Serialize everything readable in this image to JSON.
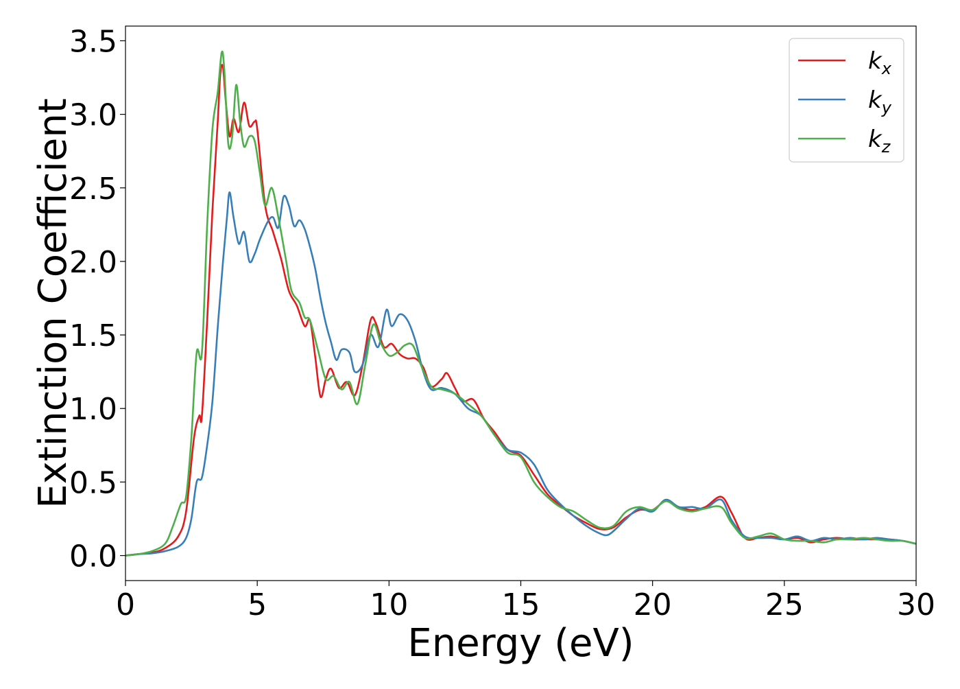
{
  "chart_data": {
    "type": "line",
    "title": "",
    "xlabel": "Energy (eV)",
    "ylabel": "Extinction Coefficient",
    "xlim": [
      0,
      30
    ],
    "ylim": [
      -0.17,
      3.6
    ],
    "xticks": [
      0,
      5,
      10,
      15,
      20,
      25,
      30
    ],
    "yticks": [
      0.0,
      0.5,
      1.0,
      1.5,
      2.0,
      2.5,
      3.0,
      3.5
    ],
    "xtick_labels": [
      "0",
      "5",
      "10",
      "15",
      "20",
      "25",
      "30"
    ],
    "ytick_labels": [
      "0.0",
      "0.5",
      "1.0",
      "1.5",
      "2.0",
      "2.5",
      "3.0",
      "3.5"
    ],
    "grid": false,
    "legend_position": "top-right",
    "series": [
      {
        "name": "k_x",
        "label_base": "k",
        "label_sub": "x",
        "color": "#e41a1c",
        "points": [
          [
            0.0,
            0.0
          ],
          [
            0.5,
            0.01
          ],
          [
            1.0,
            0.02
          ],
          [
            1.5,
            0.05
          ],
          [
            2.0,
            0.13
          ],
          [
            2.3,
            0.3
          ],
          [
            2.6,
            0.8
          ],
          [
            2.8,
            0.95
          ],
          [
            2.9,
            0.95
          ],
          [
            3.1,
            1.6
          ],
          [
            3.3,
            2.35
          ],
          [
            3.5,
            2.95
          ],
          [
            3.6,
            3.28
          ],
          [
            3.7,
            3.32
          ],
          [
            3.8,
            3.1
          ],
          [
            3.95,
            2.85
          ],
          [
            4.1,
            2.97
          ],
          [
            4.3,
            2.88
          ],
          [
            4.5,
            3.08
          ],
          [
            4.7,
            2.92
          ],
          [
            4.9,
            2.95
          ],
          [
            5.0,
            2.9
          ],
          [
            5.3,
            2.38
          ],
          [
            5.6,
            2.2
          ],
          [
            5.9,
            2.02
          ],
          [
            6.2,
            1.8
          ],
          [
            6.5,
            1.7
          ],
          [
            6.8,
            1.56
          ],
          [
            7.0,
            1.6
          ],
          [
            7.2,
            1.35
          ],
          [
            7.4,
            1.08
          ],
          [
            7.6,
            1.2
          ],
          [
            7.8,
            1.27
          ],
          [
            8.1,
            1.14
          ],
          [
            8.4,
            1.18
          ],
          [
            8.7,
            1.09
          ],
          [
            9.0,
            1.3
          ],
          [
            9.3,
            1.6
          ],
          [
            9.5,
            1.58
          ],
          [
            9.8,
            1.42
          ],
          [
            10.1,
            1.44
          ],
          [
            10.4,
            1.37
          ],
          [
            10.7,
            1.34
          ],
          [
            11.0,
            1.34
          ],
          [
            11.3,
            1.28
          ],
          [
            11.6,
            1.15
          ],
          [
            12.0,
            1.2
          ],
          [
            12.2,
            1.24
          ],
          [
            12.5,
            1.14
          ],
          [
            12.8,
            1.05
          ],
          [
            13.2,
            1.06
          ],
          [
            13.6,
            0.93
          ],
          [
            14.0,
            0.84
          ],
          [
            14.5,
            0.72
          ],
          [
            15.0,
            0.68
          ],
          [
            15.5,
            0.55
          ],
          [
            16.0,
            0.42
          ],
          [
            16.5,
            0.34
          ],
          [
            17.0,
            0.27
          ],
          [
            17.5,
            0.22
          ],
          [
            18.0,
            0.18
          ],
          [
            18.5,
            0.19
          ],
          [
            19.0,
            0.26
          ],
          [
            19.5,
            0.31
          ],
          [
            20.0,
            0.31
          ],
          [
            20.5,
            0.37
          ],
          [
            21.0,
            0.33
          ],
          [
            21.5,
            0.31
          ],
          [
            22.0,
            0.33
          ],
          [
            22.6,
            0.4
          ],
          [
            23.0,
            0.29
          ],
          [
            23.5,
            0.12
          ],
          [
            24.0,
            0.12
          ],
          [
            24.5,
            0.13
          ],
          [
            25.0,
            0.11
          ],
          [
            25.5,
            0.12
          ],
          [
            26.0,
            0.09
          ],
          [
            26.5,
            0.11
          ],
          [
            27.0,
            0.12
          ],
          [
            27.5,
            0.11
          ],
          [
            28.0,
            0.11
          ],
          [
            28.5,
            0.11
          ],
          [
            29.0,
            0.11
          ],
          [
            29.5,
            0.1
          ],
          [
            30.0,
            0.08
          ]
        ]
      },
      {
        "name": "k_y",
        "label_base": "k",
        "label_sub": "y",
        "color": "#377eb8",
        "points": [
          [
            0.0,
            0.0
          ],
          [
            0.5,
            0.01
          ],
          [
            1.0,
            0.015
          ],
          [
            1.5,
            0.03
          ],
          [
            2.0,
            0.06
          ],
          [
            2.3,
            0.12
          ],
          [
            2.5,
            0.25
          ],
          [
            2.7,
            0.5
          ],
          [
            2.9,
            0.53
          ],
          [
            3.1,
            0.75
          ],
          [
            3.3,
            1.05
          ],
          [
            3.5,
            1.55
          ],
          [
            3.7,
            2.0
          ],
          [
            3.85,
            2.3
          ],
          [
            3.95,
            2.47
          ],
          [
            4.1,
            2.3
          ],
          [
            4.3,
            2.12
          ],
          [
            4.5,
            2.2
          ],
          [
            4.7,
            2.0
          ],
          [
            4.9,
            2.05
          ],
          [
            5.1,
            2.15
          ],
          [
            5.4,
            2.27
          ],
          [
            5.6,
            2.3
          ],
          [
            5.8,
            2.23
          ],
          [
            6.0,
            2.44
          ],
          [
            6.2,
            2.38
          ],
          [
            6.4,
            2.24
          ],
          [
            6.6,
            2.28
          ],
          [
            6.8,
            2.22
          ],
          [
            7.0,
            2.1
          ],
          [
            7.2,
            1.95
          ],
          [
            7.4,
            1.75
          ],
          [
            7.6,
            1.58
          ],
          [
            7.8,
            1.45
          ],
          [
            8.0,
            1.33
          ],
          [
            8.2,
            1.4
          ],
          [
            8.5,
            1.38
          ],
          [
            8.7,
            1.25
          ],
          [
            9.0,
            1.3
          ],
          [
            9.3,
            1.5
          ],
          [
            9.6,
            1.42
          ],
          [
            9.9,
            1.67
          ],
          [
            10.1,
            1.56
          ],
          [
            10.4,
            1.64
          ],
          [
            10.7,
            1.6
          ],
          [
            11.0,
            1.46
          ],
          [
            11.3,
            1.25
          ],
          [
            11.6,
            1.13
          ],
          [
            12.0,
            1.14
          ],
          [
            12.5,
            1.1
          ],
          [
            13.0,
            1.0
          ],
          [
            13.5,
            0.95
          ],
          [
            14.0,
            0.82
          ],
          [
            14.5,
            0.72
          ],
          [
            15.0,
            0.7
          ],
          [
            15.5,
            0.62
          ],
          [
            16.0,
            0.45
          ],
          [
            16.5,
            0.35
          ],
          [
            17.0,
            0.27
          ],
          [
            17.5,
            0.2
          ],
          [
            18.0,
            0.15
          ],
          [
            18.3,
            0.14
          ],
          [
            18.6,
            0.18
          ],
          [
            19.0,
            0.25
          ],
          [
            19.5,
            0.32
          ],
          [
            20.0,
            0.3
          ],
          [
            20.5,
            0.38
          ],
          [
            21.0,
            0.33
          ],
          [
            21.5,
            0.33
          ],
          [
            22.0,
            0.32
          ],
          [
            22.6,
            0.38
          ],
          [
            23.0,
            0.24
          ],
          [
            23.5,
            0.13
          ],
          [
            24.0,
            0.12
          ],
          [
            24.5,
            0.12
          ],
          [
            25.0,
            0.11
          ],
          [
            25.5,
            0.13
          ],
          [
            26.0,
            0.1
          ],
          [
            26.5,
            0.12
          ],
          [
            27.0,
            0.11
          ],
          [
            27.5,
            0.12
          ],
          [
            28.0,
            0.11
          ],
          [
            28.5,
            0.12
          ],
          [
            29.0,
            0.11
          ],
          [
            29.5,
            0.1
          ],
          [
            30.0,
            0.08
          ]
        ]
      },
      {
        "name": "k_z",
        "label_base": "k",
        "label_sub": "z",
        "color": "#4daf4a",
        "points": [
          [
            0.0,
            0.0
          ],
          [
            0.5,
            0.01
          ],
          [
            1.0,
            0.03
          ],
          [
            1.5,
            0.08
          ],
          [
            1.8,
            0.2
          ],
          [
            2.1,
            0.35
          ],
          [
            2.3,
            0.4
          ],
          [
            2.5,
            0.8
          ],
          [
            2.7,
            1.38
          ],
          [
            2.9,
            1.38
          ],
          [
            3.1,
            2.25
          ],
          [
            3.3,
            2.9
          ],
          [
            3.5,
            3.15
          ],
          [
            3.65,
            3.42
          ],
          [
            3.75,
            3.3
          ],
          [
            3.9,
            2.8
          ],
          [
            4.05,
            2.85
          ],
          [
            4.2,
            3.2
          ],
          [
            4.35,
            2.95
          ],
          [
            4.5,
            2.78
          ],
          [
            4.7,
            2.85
          ],
          [
            4.9,
            2.82
          ],
          [
            5.1,
            2.6
          ],
          [
            5.3,
            2.38
          ],
          [
            5.55,
            2.5
          ],
          [
            5.8,
            2.3
          ],
          [
            6.1,
            2.0
          ],
          [
            6.3,
            1.8
          ],
          [
            6.6,
            1.72
          ],
          [
            6.8,
            1.62
          ],
          [
            7.0,
            1.6
          ],
          [
            7.3,
            1.4
          ],
          [
            7.6,
            1.2
          ],
          [
            7.9,
            1.22
          ],
          [
            8.2,
            1.13
          ],
          [
            8.5,
            1.18
          ],
          [
            8.8,
            1.03
          ],
          [
            9.1,
            1.3
          ],
          [
            9.4,
            1.57
          ],
          [
            9.7,
            1.44
          ],
          [
            10.0,
            1.36
          ],
          [
            10.3,
            1.38
          ],
          [
            10.6,
            1.43
          ],
          [
            10.9,
            1.43
          ],
          [
            11.2,
            1.3
          ],
          [
            11.6,
            1.15
          ],
          [
            12.0,
            1.13
          ],
          [
            12.5,
            1.1
          ],
          [
            13.0,
            1.03
          ],
          [
            13.5,
            0.95
          ],
          [
            14.0,
            0.82
          ],
          [
            14.5,
            0.7
          ],
          [
            15.0,
            0.67
          ],
          [
            15.5,
            0.5
          ],
          [
            16.0,
            0.4
          ],
          [
            16.5,
            0.33
          ],
          [
            17.0,
            0.3
          ],
          [
            17.5,
            0.24
          ],
          [
            18.0,
            0.19
          ],
          [
            18.5,
            0.2
          ],
          [
            19.0,
            0.3
          ],
          [
            19.5,
            0.33
          ],
          [
            20.0,
            0.31
          ],
          [
            20.5,
            0.37
          ],
          [
            21.0,
            0.32
          ],
          [
            21.5,
            0.3
          ],
          [
            22.0,
            0.32
          ],
          [
            22.6,
            0.33
          ],
          [
            23.0,
            0.22
          ],
          [
            23.5,
            0.12
          ],
          [
            24.0,
            0.13
          ],
          [
            24.5,
            0.15
          ],
          [
            25.0,
            0.11
          ],
          [
            25.5,
            0.1
          ],
          [
            26.0,
            0.1
          ],
          [
            26.5,
            0.09
          ],
          [
            27.0,
            0.11
          ],
          [
            27.5,
            0.11
          ],
          [
            28.0,
            0.12
          ],
          [
            28.5,
            0.11
          ],
          [
            29.0,
            0.1
          ],
          [
            29.5,
            0.1
          ],
          [
            30.0,
            0.08
          ]
        ]
      }
    ]
  }
}
